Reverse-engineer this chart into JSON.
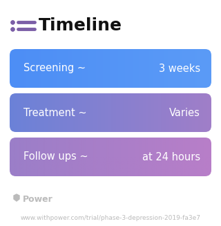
{
  "title": "Timeline",
  "title_icon_color": "#7B5EA7",
  "title_fontsize": 18,
  "title_color": "#111111",
  "background_color": "#ffffff",
  "rows": [
    {
      "left_label": "Screening ~",
      "right_label": "3 weeks",
      "color_left": "#4D8EF5",
      "color_right": "#5B9BF7"
    },
    {
      "left_label": "Treatment ~",
      "right_label": "Varies",
      "color_left": "#6B82D8",
      "color_right": "#A07EC8"
    },
    {
      "left_label": "Follow ups ~",
      "right_label": "at 24 hours",
      "color_left": "#9B7EC8",
      "color_right": "#B87EC8"
    }
  ],
  "footer_text": "Power",
  "footer_url": "www.withpower.com/trial/phase-3-depression-2019-fa3e7",
  "footer_color": "#bbbbbb",
  "footer_fontsize": 6.5,
  "row_label_fontsize": 10.5
}
